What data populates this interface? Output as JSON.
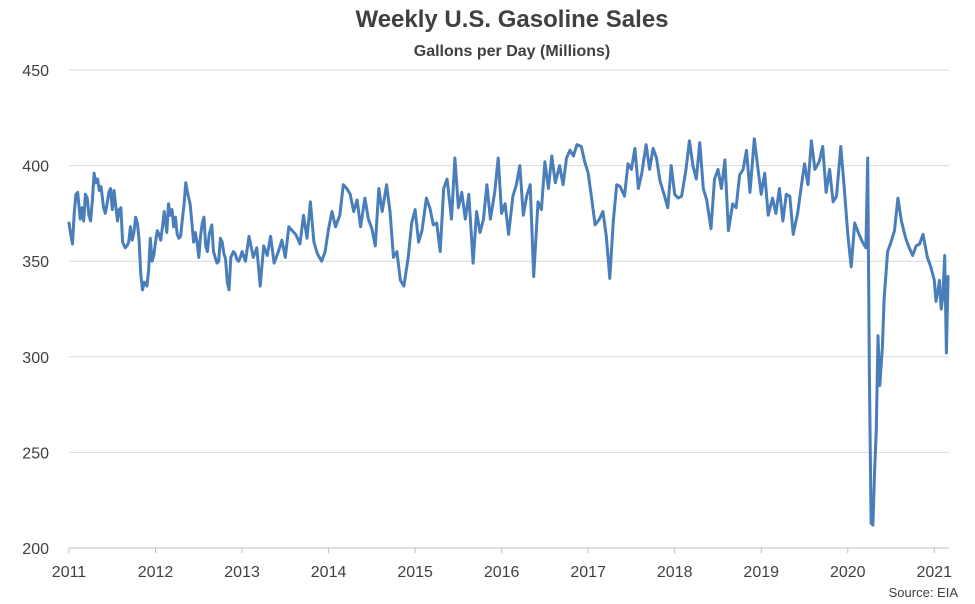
{
  "chart_data": {
    "type": "line",
    "title": "Weekly U.S. Gasoline Sales",
    "subtitle": "Gallons per Day (Millions)",
    "source": "Source: EIA",
    "xlabel": "",
    "ylabel": "",
    "xlim": [
      2011.0,
      2021.17
    ],
    "ylim": [
      200,
      450
    ],
    "yticks": [
      200,
      250,
      300,
      350,
      400,
      450
    ],
    "xticks": [
      "2011",
      "2012",
      "2013",
      "2014",
      "2015",
      "2016",
      "2017",
      "2018",
      "2019",
      "2020",
      "2021"
    ],
    "grid": "horizontal",
    "legend": "none",
    "line_color": "#4a7ebb",
    "series": [
      {
        "x": [
          2011.0,
          2011.02,
          2011.04,
          2011.06,
          2011.08,
          2011.1,
          2011.13,
          2011.15,
          2011.17,
          2011.19,
          2011.21,
          2011.23,
          2011.25,
          2011.27,
          2011.29,
          2011.31,
          2011.33,
          2011.35,
          2011.37,
          2011.4,
          2011.42,
          2011.44,
          2011.46,
          2011.48,
          2011.5,
          2011.52,
          2011.54,
          2011.56,
          2011.58,
          2011.6,
          2011.62,
          2011.65,
          2011.67,
          2011.69,
          2011.71,
          2011.73,
          2011.75,
          2011.77,
          2011.79,
          2011.81,
          2011.83,
          2011.85,
          2011.87,
          2011.9,
          2011.92,
          2011.94,
          2011.96,
          2011.98,
          2012.0,
          2012.02,
          2012.04,
          2012.06,
          2012.08,
          2012.1,
          2012.13,
          2012.15,
          2012.17,
          2012.19,
          2012.21,
          2012.23,
          2012.25,
          2012.27,
          2012.29,
          2012.31,
          2012.33,
          2012.35,
          2012.37,
          2012.4,
          2012.42,
          2012.44,
          2012.46,
          2012.48,
          2012.5,
          2012.52,
          2012.54,
          2012.56,
          2012.58,
          2012.6,
          2012.62,
          2012.65,
          2012.67,
          2012.69,
          2012.71,
          2012.73,
          2012.75,
          2012.77,
          2012.79,
          2012.81,
          2012.83,
          2012.85,
          2012.87,
          2012.9,
          2012.92,
          2012.94,
          2012.96,
          2012.98,
          2013.0,
          2013.04,
          2013.08,
          2013.13,
          2013.17,
          2013.21,
          2013.25,
          2013.29,
          2013.33,
          2013.37,
          2013.42,
          2013.46,
          2013.5,
          2013.54,
          2013.58,
          2013.62,
          2013.67,
          2013.71,
          2013.75,
          2013.79,
          2013.83,
          2013.87,
          2013.92,
          2013.96,
          2014.0,
          2014.04,
          2014.08,
          2014.13,
          2014.17,
          2014.21,
          2014.25,
          2014.29,
          2014.33,
          2014.37,
          2014.42,
          2014.46,
          2014.5,
          2014.54,
          2014.58,
          2014.62,
          2014.67,
          2014.71,
          2014.75,
          2014.79,
          2014.83,
          2014.87,
          2014.92,
          2014.96,
          2015.0,
          2015.04,
          2015.08,
          2015.13,
          2015.17,
          2015.21,
          2015.25,
          2015.29,
          2015.33,
          2015.37,
          2015.42,
          2015.46,
          2015.5,
          2015.54,
          2015.58,
          2015.62,
          2015.67,
          2015.71,
          2015.75,
          2015.79,
          2015.83,
          2015.87,
          2015.92,
          2015.96,
          2016.0,
          2016.04,
          2016.08,
          2016.13,
          2016.17,
          2016.21,
          2016.25,
          2016.29,
          2016.33,
          2016.37,
          2016.42,
          2016.46,
          2016.5,
          2016.54,
          2016.58,
          2016.62,
          2016.67,
          2016.71,
          2016.75,
          2016.79,
          2016.83,
          2016.87,
          2016.92,
          2016.96,
          2017.0,
          2017.04,
          2017.08,
          2017.13,
          2017.17,
          2017.21,
          2017.25,
          2017.29,
          2017.33,
          2017.37,
          2017.42,
          2017.46,
          2017.5,
          2017.54,
          2017.58,
          2017.62,
          2017.67,
          2017.71,
          2017.75,
          2017.79,
          2017.83,
          2017.87,
          2017.92,
          2017.96,
          2018.0,
          2018.04,
          2018.08,
          2018.13,
          2018.17,
          2018.21,
          2018.25,
          2018.29,
          2018.33,
          2018.37,
          2018.42,
          2018.46,
          2018.5,
          2018.54,
          2018.58,
          2018.62,
          2018.67,
          2018.71,
          2018.75,
          2018.79,
          2018.83,
          2018.87,
          2018.92,
          2018.96,
          2019.0,
          2019.04,
          2019.08,
          2019.13,
          2019.17,
          2019.21,
          2019.25,
          2019.29,
          2019.33,
          2019.37,
          2019.42,
          2019.46,
          2019.5,
          2019.54,
          2019.58,
          2019.62,
          2019.67,
          2019.71,
          2019.75,
          2019.79,
          2019.83,
          2019.87,
          2019.92,
          2019.96,
          2020.0,
          2020.04,
          2020.08,
          2020.13,
          2020.17,
          2020.21,
          2020.23,
          2020.25,
          2020.27,
          2020.29,
          2020.31,
          2020.33,
          2020.35,
          2020.37,
          2020.4,
          2020.42,
          2020.46,
          2020.5,
          2020.54,
          2020.58,
          2020.62,
          2020.67,
          2020.71,
          2020.75,
          2020.79,
          2020.83,
          2020.87,
          2020.92,
          2020.96,
          2021.0,
          2021.02,
          2021.04,
          2021.06,
          2021.08,
          2021.1,
          2021.12,
          2021.14,
          2021.16
        ],
        "y": [
          370,
          364,
          359,
          375,
          385,
          386,
          372,
          378,
          371,
          385,
          383,
          374,
          371,
          382,
          396,
          391,
          393,
          387,
          389,
          378,
          375,
          380,
          386,
          388,
          377,
          387,
          379,
          371,
          377,
          378,
          360,
          357,
          358,
          360,
          368,
          361,
          365,
          373,
          370,
          361,
          343,
          335,
          339,
          337,
          345,
          362,
          350,
          353,
          360,
          366,
          364,
          361,
          368,
          376,
          365,
          380,
          374,
          377,
          368,
          373,
          364,
          362,
          363,
          372,
          380,
          391,
          386,
          380,
          370,
          360,
          365,
          360,
          352,
          363,
          370,
          373,
          358,
          355,
          364,
          369,
          355,
          352,
          349,
          350,
          362,
          360,
          354,
          351,
          339,
          335,
          352,
          355,
          354,
          351,
          350,
          352,
          355,
          350,
          363,
          352,
          357,
          337,
          358,
          353,
          363,
          349,
          355,
          361,
          352,
          368,
          366,
          364,
          359,
          374,
          362,
          381,
          360,
          354,
          350,
          355,
          367,
          376,
          368,
          374,
          390,
          388,
          385,
          376,
          382,
          368,
          383,
          372,
          367,
          358,
          388,
          376,
          390,
          376,
          352,
          355,
          340,
          337,
          352,
          370,
          377,
          360,
          366,
          383,
          378,
          369,
          370,
          355,
          388,
          393,
          372,
          404,
          378,
          386,
          372,
          385,
          349,
          376,
          365,
          372,
          390,
          372,
          386,
          404,
          375,
          380,
          364,
          384,
          390,
          400,
          374,
          384,
          390,
          342,
          381,
          377,
          402,
          388,
          405,
          391,
          400,
          390,
          404,
          408,
          405,
          411,
          410,
          402,
          396,
          383,
          369,
          372,
          376,
          363,
          341,
          371,
          390,
          389,
          384,
          401,
          398,
          409,
          388,
          396,
          411,
          398,
          409,
          404,
          392,
          386,
          378,
          400,
          385,
          383,
          384,
          398,
          413,
          400,
          393,
          412,
          388,
          382,
          367,
          393,
          398,
          388,
          403,
          366,
          380,
          378,
          395,
          398,
          408,
          386,
          414,
          399,
          385,
          396,
          374,
          383,
          375,
          388,
          371,
          385,
          384,
          364,
          375,
          388,
          401,
          390,
          413,
          398,
          402,
          410,
          386,
          398,
          381,
          384,
          410,
          388,
          364,
          347,
          370,
          364,
          360,
          357,
          404,
          290,
          213,
          212,
          240,
          262,
          311,
          285,
          305,
          330,
          355,
          360,
          366,
          383,
          371,
          362,
          357,
          353,
          358,
          359,
          364,
          352,
          347,
          340,
          329,
          334,
          340,
          325,
          332,
          353,
          302,
          342
        ]
      }
    ]
  }
}
